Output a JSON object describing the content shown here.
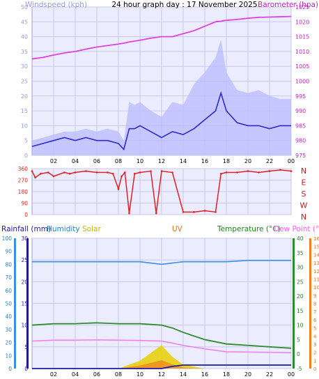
{
  "header": {
    "title": "24 hour graph day : 17 November 2025",
    "windspeed_label": "Windspeed (kph)",
    "barometer_label": "Barometer (hpa)"
  },
  "wind_dir_labels": [
    "N",
    "W",
    "S",
    "E",
    "N"
  ],
  "bottom_labels": {
    "rainfall": "Rainfall (mm)",
    "humidity": "Humidity",
    "solar": "Solar",
    "uv": "UV",
    "temperature": "Temperature (°C)",
    "dewpoint": "Dew Point (°C)"
  },
  "colors": {
    "wind_avg": "#2a2ad0",
    "wind_gust": "#b8b8ff",
    "barometer": "#e040e0",
    "direction": "#e02020",
    "humidity": "#3a8ee8",
    "temperature": "#2c8c2c",
    "dewpoint": "#f080f0",
    "solar": "#e8d000",
    "uv": "#f08020",
    "rainfall": "#1a1aa0",
    "plot_bg": "#ececff"
  },
  "chart_data": [
    {
      "type": "line",
      "title": "24 hour graph day : 17 November 2025",
      "x_ticks": [
        "02",
        "04",
        "06",
        "08",
        "10",
        "12",
        "14",
        "16",
        "18",
        "20",
        "22",
        "00"
      ],
      "y_left_label": "Windspeed (kph)",
      "y_left_ticks": [
        0,
        5,
        10,
        15,
        20,
        25,
        30,
        35,
        40,
        45,
        50
      ],
      "y_left_lim": [
        0,
        50
      ],
      "y_right_label": "Barometer (hpa)",
      "y_right_ticks": [
        975,
        980,
        985,
        990,
        995,
        1000,
        1005,
        1010,
        1015,
        1020,
        1025
      ],
      "y_right_lim": [
        975,
        1025
      ],
      "x_hours": [
        0,
        1,
        2,
        3,
        4,
        5,
        6,
        7,
        8,
        8.5,
        9,
        9.5,
        10,
        11,
        12,
        13,
        14,
        15,
        16,
        17,
        17.5,
        18,
        19,
        20,
        21,
        22,
        23,
        24
      ],
      "series": [
        {
          "name": "Windspeed avg",
          "values": [
            3,
            4,
            5,
            6,
            5,
            6,
            5,
            5,
            4,
            2,
            9,
            9,
            10,
            8,
            6,
            8,
            7,
            9,
            12,
            15,
            21,
            15,
            11,
            10,
            10,
            9,
            10,
            10
          ]
        },
        {
          "name": "Windspeed gust",
          "values": [
            5,
            6,
            7,
            8,
            8,
            9,
            8,
            9,
            8,
            5,
            18,
            17,
            18,
            15,
            13,
            18,
            17,
            24,
            28,
            33,
            39,
            28,
            22,
            21,
            22,
            20,
            19,
            19
          ]
        },
        {
          "name": "Barometer",
          "values": [
            1007.5,
            1008,
            1008.8,
            1009.5,
            1010,
            1010.8,
            1011.5,
            1012,
            1012.5,
            1012.8,
            1013.2,
            1013.5,
            1013.8,
            1014.5,
            1015,
            1015,
            1016,
            1017,
            1018.5,
            1020,
            1020.2,
            1020.5,
            1020.8,
            1021.2,
            1021.5,
            1021.6,
            1021.7,
            1021.8
          ]
        }
      ]
    },
    {
      "type": "scatter",
      "title": "Wind direction",
      "y_label_ticks": [
        "N",
        "W",
        "S",
        "E",
        "N"
      ],
      "y_ticks": [
        0,
        90,
        180,
        270,
        360
      ],
      "y_lim": [
        0,
        360
      ],
      "x_hours": [
        0,
        0.3,
        0.8,
        1.5,
        2,
        3,
        3.5,
        4,
        5,
        6,
        7,
        7.5,
        8,
        8.3,
        8.6,
        9,
        9.5,
        10,
        11,
        11.5,
        12,
        13,
        14,
        15,
        16,
        17,
        17.5,
        18,
        19,
        20,
        21,
        22,
        23,
        24
      ],
      "series": [
        {
          "name": "Wind direction",
          "values": [
            340,
            290,
            320,
            330,
            300,
            330,
            320,
            330,
            340,
            330,
            330,
            320,
            200,
            300,
            330,
            10,
            320,
            330,
            340,
            10,
            340,
            330,
            20,
            20,
            30,
            20,
            320,
            330,
            330,
            340,
            330,
            340,
            350,
            340
          ]
        }
      ]
    },
    {
      "type": "line",
      "title": "",
      "x_ticks": [
        "02",
        "04",
        "06",
        "08",
        "10",
        "12",
        "14",
        "16",
        "18",
        "20",
        "22",
        "00"
      ],
      "y_left_ticks": [
        0,
        10,
        20,
        30,
        40,
        50,
        60,
        70,
        80,
        90,
        100
      ],
      "y_rain_ticks": [
        0,
        5,
        10,
        15,
        20,
        25,
        30
      ],
      "y_temp_ticks": [
        -5,
        0,
        5,
        10,
        15,
        20,
        25,
        30,
        35,
        40
      ],
      "y_dew_ticks": [
        0,
        1,
        2,
        3,
        4,
        5,
        6,
        7,
        8,
        9,
        10,
        11,
        12,
        13,
        14,
        15,
        16
      ],
      "x_hours": [
        0,
        2,
        4,
        6,
        8,
        10,
        12,
        13,
        14,
        16,
        18,
        20,
        22,
        24
      ],
      "series": [
        {
          "name": "Humidity",
          "values": [
            82,
            82,
            82,
            82,
            82,
            82,
            80,
            81,
            82,
            82,
            82,
            83,
            83,
            83
          ]
        },
        {
          "name": "Temperature",
          "values": [
            10,
            10.5,
            10.5,
            10.8,
            10.5,
            10.5,
            10,
            9,
            7.5,
            5,
            3.5,
            3,
            2.5,
            2
          ]
        },
        {
          "name": "Dew Point",
          "values": [
            4.5,
            4.8,
            4.8,
            4.9,
            4.8,
            4.7,
            4.5,
            3.8,
            3,
            1.8,
            0.8,
            0.7,
            0.6,
            0.5
          ]
        },
        {
          "name": "Rainfall",
          "values": [
            0,
            0,
            0,
            0,
            0,
            0,
            0,
            0.5,
            0.8,
            0.8,
            0.8,
            0.8,
            0.8,
            0.8
          ]
        },
        {
          "name": "Solar",
          "values": [
            0,
            0,
            0,
            0,
            0,
            20,
            60,
            30,
            10,
            0,
            0,
            0,
            0,
            0
          ]
        },
        {
          "name": "UV",
          "values": [
            0,
            0,
            0,
            0,
            0,
            0.3,
            0.8,
            0.4,
            0.1,
            0,
            0,
            0,
            0,
            0
          ]
        }
      ]
    }
  ]
}
